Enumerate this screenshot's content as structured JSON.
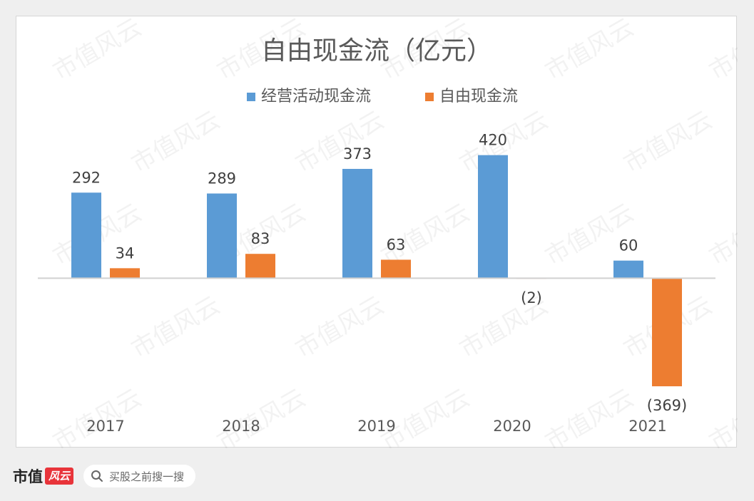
{
  "chart_data": {
    "type": "bar",
    "title": "自由现金流（亿元）",
    "categories": [
      "2017",
      "2018",
      "2019",
      "2020",
      "2021"
    ],
    "series": [
      {
        "name": "经营活动现金流",
        "color": "#5b9bd5",
        "values": [
          292,
          289,
          373,
          420,
          60
        ],
        "labels": [
          "292",
          "289",
          "373",
          "420",
          "60"
        ]
      },
      {
        "name": "自由现金流",
        "color": "#ed7d31",
        "values": [
          34,
          83,
          63,
          -2,
          -369
        ],
        "labels": [
          "34",
          "83",
          "63",
          "(2)",
          "(369)"
        ]
      }
    ],
    "ylim": [
      -420,
      480
    ],
    "legend": "top-center",
    "grid": false
  },
  "watermark": "市值风云",
  "footer": {
    "brand": "市值",
    "logo": "风云",
    "search_placeholder": "买股之前搜一搜"
  }
}
